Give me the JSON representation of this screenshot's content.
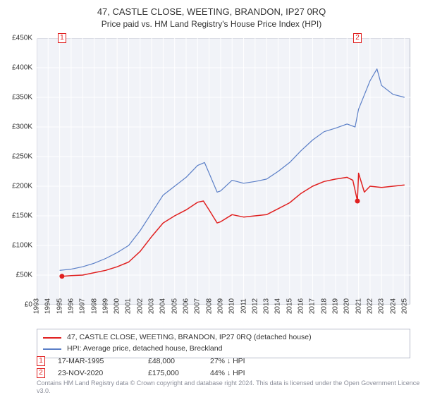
{
  "title": "47, CASTLE CLOSE, WEETING, BRANDON, IP27 0RQ",
  "subtitle": "Price paid vs. HM Land Registry's House Price Index (HPI)",
  "chart": {
    "type": "line",
    "background_color": "#f1f3f8",
    "border_color": "#b5b9c8",
    "grid_color": "#ffffff",
    "x_axis": {
      "ticks": [
        "1993",
        "1994",
        "1995",
        "1996",
        "1997",
        "1998",
        "1999",
        "2000",
        "2001",
        "2002",
        "2003",
        "2004",
        "2005",
        "2006",
        "2007",
        "2008",
        "2009",
        "2010",
        "2011",
        "2012",
        "2013",
        "2014",
        "2015",
        "2016",
        "2017",
        "2018",
        "2019",
        "2020",
        "2021",
        "2022",
        "2023",
        "2024",
        "2025"
      ],
      "xlim": [
        1993,
        2025.5
      ],
      "label_fontsize": 10,
      "label_color": "#333333"
    },
    "y_axis": {
      "ticks": [
        0,
        50000,
        100000,
        150000,
        200000,
        250000,
        300000,
        350000,
        400000,
        450000
      ],
      "tick_labels": [
        "£0",
        "£50K",
        "£100K",
        "£150K",
        "£200K",
        "£250K",
        "£300K",
        "£350K",
        "£400K",
        "£450K"
      ],
      "ylim": [
        0,
        450000
      ],
      "label_fontsize": 10,
      "label_color": "#333333"
    },
    "series": [
      {
        "id": "property",
        "label": "47, CASTLE CLOSE, WEETING, BRANDON, IP27 0RQ (detached house)",
        "color": "#e02020",
        "line_width": 1.5,
        "data": [
          [
            1995.2,
            48000
          ],
          [
            1996,
            49000
          ],
          [
            1997,
            50000
          ],
          [
            1998,
            54000
          ],
          [
            1999,
            58000
          ],
          [
            2000,
            64000
          ],
          [
            2001,
            72000
          ],
          [
            2002,
            90000
          ],
          [
            2003,
            115000
          ],
          [
            2004,
            138000
          ],
          [
            2005,
            150000
          ],
          [
            2006,
            160000
          ],
          [
            2007,
            173000
          ],
          [
            2007.5,
            175000
          ],
          [
            2008,
            160000
          ],
          [
            2008.7,
            138000
          ],
          [
            2009,
            140000
          ],
          [
            2010,
            152000
          ],
          [
            2011,
            148000
          ],
          [
            2012,
            150000
          ],
          [
            2013,
            152000
          ],
          [
            2014,
            162000
          ],
          [
            2015,
            172000
          ],
          [
            2016,
            188000
          ],
          [
            2017,
            200000
          ],
          [
            2018,
            208000
          ],
          [
            2019,
            212000
          ],
          [
            2020,
            215000
          ],
          [
            2020.5,
            210000
          ],
          [
            2020.9,
            175000
          ],
          [
            2021,
            222000
          ],
          [
            2021.5,
            190000
          ],
          [
            2022,
            200000
          ],
          [
            2023,
            198000
          ],
          [
            2024,
            200000
          ],
          [
            2025,
            202000
          ]
        ]
      },
      {
        "id": "hpi",
        "label": "HPI: Average price, detached house, Breckland",
        "color": "#5b7fc7",
        "line_width": 1.2,
        "data": [
          [
            1995,
            58000
          ],
          [
            1996,
            60000
          ],
          [
            1997,
            64000
          ],
          [
            1998,
            70000
          ],
          [
            1999,
            78000
          ],
          [
            2000,
            88000
          ],
          [
            2001,
            100000
          ],
          [
            2002,
            125000
          ],
          [
            2003,
            155000
          ],
          [
            2004,
            185000
          ],
          [
            2005,
            200000
          ],
          [
            2006,
            215000
          ],
          [
            2007,
            235000
          ],
          [
            2007.6,
            240000
          ],
          [
            2008,
            222000
          ],
          [
            2008.7,
            190000
          ],
          [
            2009,
            192000
          ],
          [
            2010,
            210000
          ],
          [
            2011,
            205000
          ],
          [
            2012,
            208000
          ],
          [
            2013,
            212000
          ],
          [
            2014,
            225000
          ],
          [
            2015,
            240000
          ],
          [
            2016,
            260000
          ],
          [
            2017,
            278000
          ],
          [
            2018,
            292000
          ],
          [
            2019,
            298000
          ],
          [
            2020,
            305000
          ],
          [
            2020.7,
            300000
          ],
          [
            2021,
            330000
          ],
          [
            2022,
            378000
          ],
          [
            2022.6,
            398000
          ],
          [
            2023,
            370000
          ],
          [
            2024,
            355000
          ],
          [
            2025,
            350000
          ]
        ]
      }
    ],
    "markers": [
      {
        "id": "1",
        "x": 1995.2,
        "y": 48000,
        "color": "#e02020"
      },
      {
        "id": "2",
        "x": 2020.9,
        "y": 175000,
        "color": "#e02020"
      }
    ]
  },
  "legend": {
    "rows": [
      {
        "color": "#e02020",
        "label": "47, CASTLE CLOSE, WEETING, BRANDON, IP27 0RQ (detached house)"
      },
      {
        "color": "#5b7fc7",
        "label": "HPI: Average price, detached house, Breckland"
      }
    ]
  },
  "transactions": [
    {
      "marker": "1",
      "date": "17-MAR-1995",
      "price": "£48,000",
      "pct": "27% ↓ HPI"
    },
    {
      "marker": "2",
      "date": "23-NOV-2020",
      "price": "£175,000",
      "pct": "44% ↓ HPI"
    }
  ],
  "footnote": "Contains HM Land Registry data © Crown copyright and database right 2024. This data is licensed under the Open Government Licence v3.0."
}
